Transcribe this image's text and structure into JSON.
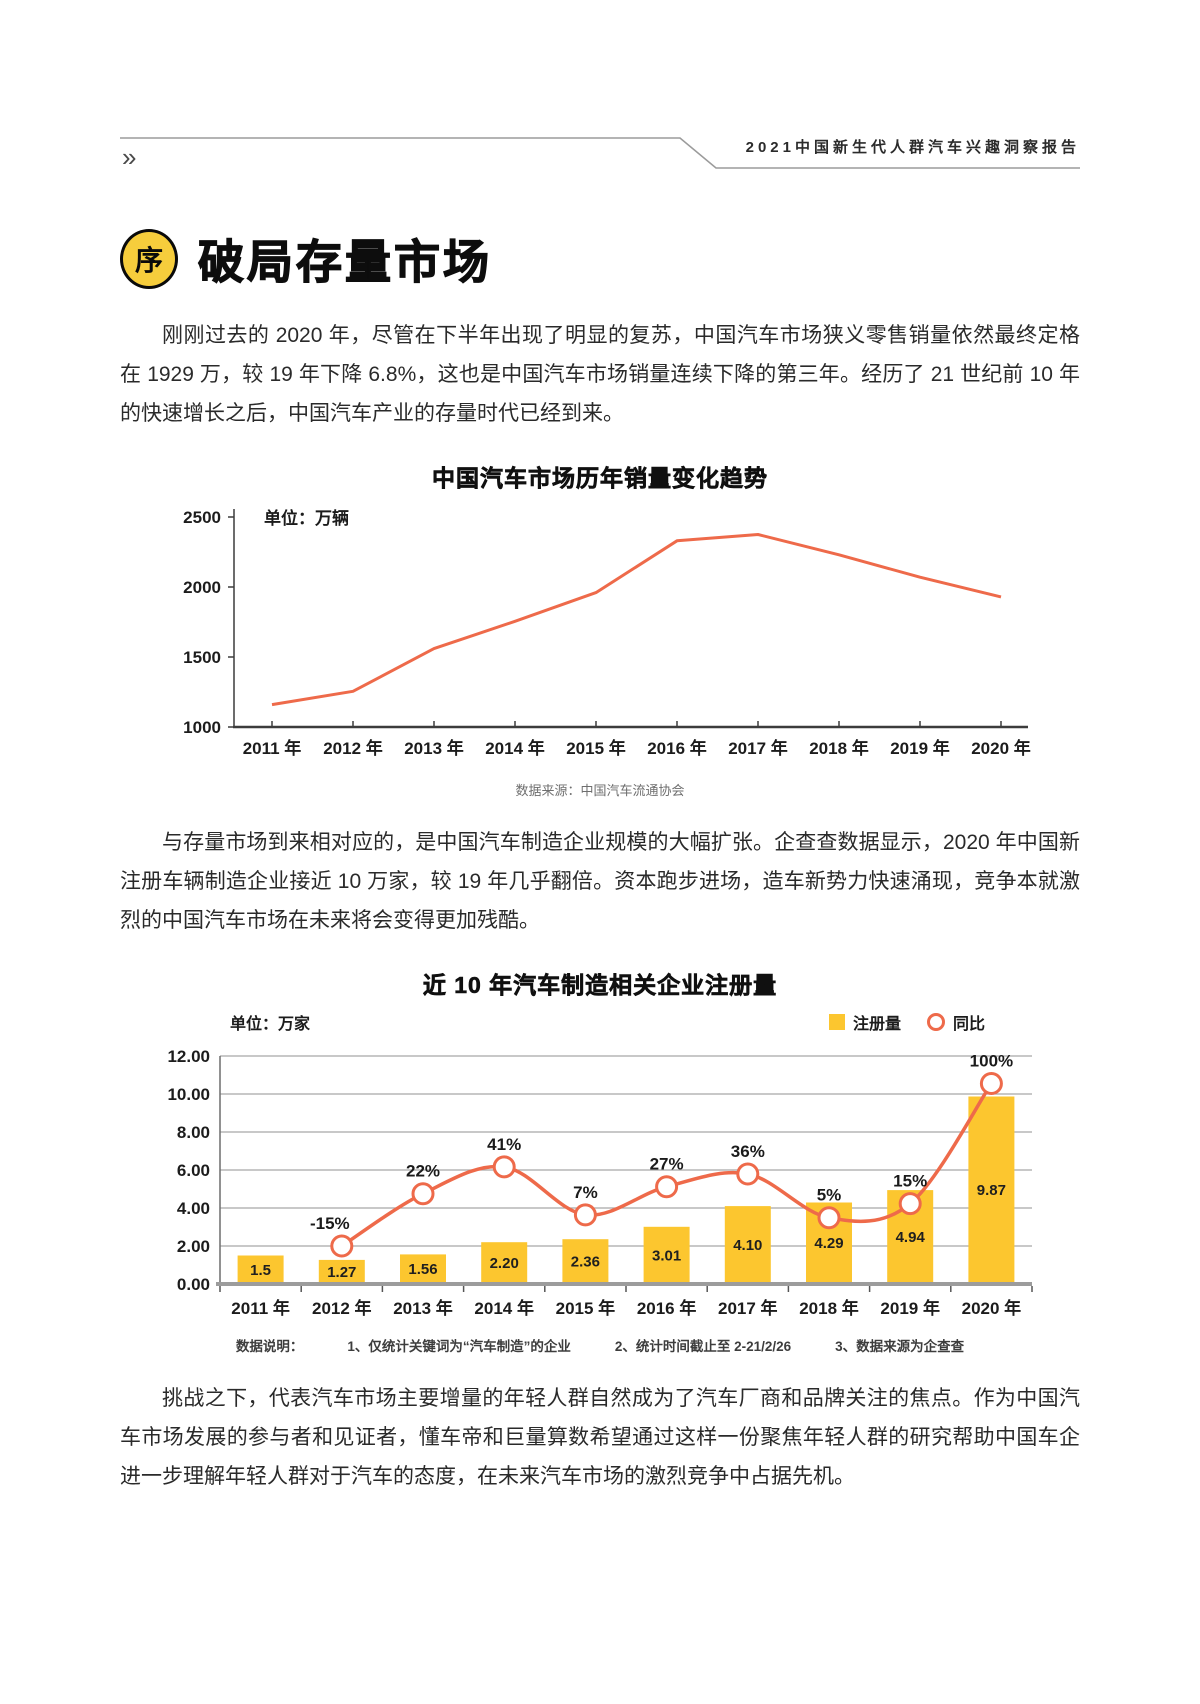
{
  "header": {
    "chevrons": "»",
    "report_title": "2021中国新生代人群汽车兴趣洞察报告"
  },
  "section": {
    "badge": "序",
    "title": "破局存量市场"
  },
  "paragraphs": {
    "p1": "刚刚过去的 2020 年，尽管在下半年出现了明显的复苏，中国汽车市场狭义零售销量依然最终定格在 1929 万，较 19 年下降 6.8%，这也是中国汽车市场销量连续下降的第三年。经历了 21 世纪前 10 年的快速增长之后，中国汽车产业的存量时代已经到来。",
    "p2": "与存量市场到来相对应的，是中国汽车制造企业规模的大幅扩张。企查查数据显示，2020 年中国新注册车辆制造企业接近 10 万家，较 19 年几乎翻倍。资本跑步进场，造车新势力快速涌现，竞争本就激烈的中国汽车市场在未来将会变得更加残酷。",
    "p3": "挑战之下，代表汽车市场主要增量的年轻人群自然成为了汽车厂商和品牌关注的焦点。作为中国汽车市场发展的参与者和见证者，懂车帝和巨量算数希望通过这样一份聚焦年轻人群的研究帮助中国车企进一步理解年轻人群对于汽车的态度，在未来汽车市场的激烈竞争中占据先机。"
  },
  "chart_data": [
    {
      "type": "line",
      "title": "中国汽车市场历年销量变化趋势",
      "unit_label": "单位：万辆",
      "categories": [
        "2011 年",
        "2012 年",
        "2013 年",
        "2014 年",
        "2015 年",
        "2016 年",
        "2017 年",
        "2018 年",
        "2019 年",
        "2020 年"
      ],
      "values": [
        1160,
        1255,
        1560,
        1755,
        1960,
        2330,
        2375,
        2230,
        2070,
        1929
      ],
      "ylim": [
        1000,
        2500
      ],
      "yticks": [
        2500,
        2000,
        1500,
        1000
      ],
      "line_color": "#ee6a4a",
      "grid": false,
      "source": "数据来源：中国汽车流通协会"
    },
    {
      "type": "bar+line",
      "title": "近 10 年汽车制造相关企业注册量",
      "unit_label": "单位：万家",
      "legend": [
        {
          "label": "注册量",
          "marker": "bar",
          "color": "#fcc62f"
        },
        {
          "label": "同比",
          "marker": "circle",
          "color": "#ee6a4a"
        }
      ],
      "categories": [
        "2011 年",
        "2012 年",
        "2013 年",
        "2014 年",
        "2015 年",
        "2016 年",
        "2017 年",
        "2018 年",
        "2019 年",
        "2020 年"
      ],
      "series": [
        {
          "name": "注册量",
          "type": "bar",
          "color": "#fcc62f",
          "values": [
            1.5,
            1.27,
            1.56,
            2.2,
            2.36,
            3.01,
            4.1,
            4.29,
            4.94,
            9.87
          ],
          "labels": [
            "1.5",
            "1.27",
            "1.56",
            "2.20",
            "2.36",
            "3.01",
            "4.10",
            "4.29",
            "4.94",
            "9.87"
          ]
        },
        {
          "name": "同比",
          "type": "line",
          "color": "#ee6a4a",
          "values": [
            null,
            -15,
            22,
            41,
            7,
            27,
            36,
            5,
            15,
            100
          ],
          "labels": [
            null,
            "-15%",
            "22%",
            "41%",
            "7%",
            "27%",
            "36%",
            "5%",
            "15%",
            "100%"
          ]
        }
      ],
      "ylim": [
        0,
        12
      ],
      "yticks": [
        "0.00",
        "2.00",
        "4.00",
        "6.00",
        "8.00",
        "10.00",
        "12.00"
      ],
      "grid": true,
      "legend_position": "top-right",
      "notes": {
        "label": "数据说明：",
        "items": [
          "1、仅统计关键词为“汽车制造”的企业",
          "2、统计时间截止至 2-21/2/26",
          "3、数据来源为企查查"
        ]
      }
    }
  ]
}
